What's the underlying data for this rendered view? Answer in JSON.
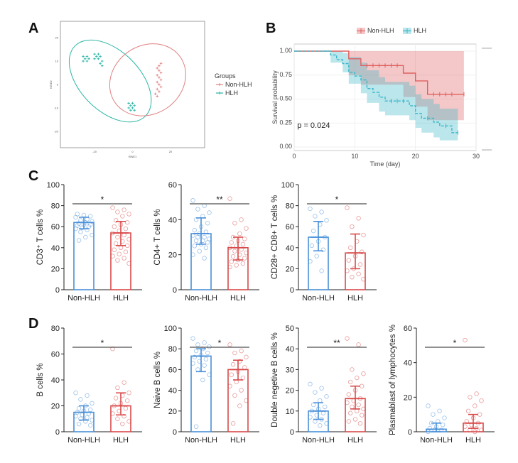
{
  "panels": [
    {
      "id": "A",
      "letter": "A"
    },
    {
      "id": "B",
      "letter": "B"
    },
    {
      "id": "C",
      "letter": "C"
    },
    {
      "id": "D",
      "letter": "D"
    }
  ],
  "colors": {
    "nonhlh": "#4a90d9",
    "hlh": "#d94a4a",
    "km_non": "#e06060",
    "km_hlh": "#3bb8c8",
    "tsne_non": "#e08080",
    "tsne_hlh": "#2bb5a5"
  },
  "chart_data": [
    {
      "panel": "A",
      "type": "scatter",
      "xlabel": "tSNE1",
      "ylabel": "tSNE2",
      "xticks": [
        "-20",
        "0",
        "20"
      ],
      "yticks": [
        "20",
        "10",
        "0",
        "-10",
        "-20"
      ],
      "legend": {
        "title": "Groups",
        "entries": [
          "Non-HLH",
          "HLH"
        ],
        "placement": "right"
      },
      "series": [
        {
          "name": "Non-HLH",
          "points": [
            [
              14,
              8
            ],
            [
              15,
              9
            ],
            [
              13,
              7
            ],
            [
              14,
              6
            ],
            [
              15,
              5
            ],
            [
              13,
              4
            ],
            [
              14,
              3
            ],
            [
              15,
              2
            ],
            [
              13,
              1
            ],
            [
              14,
              0
            ],
            [
              15,
              -1
            ],
            [
              13,
              -2
            ],
            [
              14,
              -3
            ],
            [
              12,
              -4
            ],
            [
              13,
              -5
            ]
          ]
        },
        {
          "name": "HLH",
          "points": [
            [
              -26,
              12
            ],
            [
              -24,
              12
            ],
            [
              -25,
              11
            ],
            [
              -23,
              11
            ],
            [
              -26,
              10
            ],
            [
              -24,
              10
            ],
            [
              -20,
              13
            ],
            [
              -18,
              13
            ],
            [
              -19,
              12
            ],
            [
              -17,
              12
            ],
            [
              -20,
              11
            ],
            [
              -18,
              11
            ],
            [
              -16,
              10
            ],
            [
              -17,
              9
            ],
            [
              -16,
              8
            ],
            [
              -2,
              -8
            ],
            [
              0,
              -8
            ],
            [
              -1,
              -9
            ],
            [
              1,
              -9
            ],
            [
              -2,
              -10
            ],
            [
              0,
              -10
            ],
            [
              -1,
              -11
            ],
            [
              1,
              -11
            ]
          ]
        }
      ]
    },
    {
      "panel": "B",
      "type": "line",
      "xlabel": "Time (day)",
      "ylabel": "Survival probability",
      "xlim": [
        0,
        30
      ],
      "ylim": [
        0,
        1
      ],
      "xticks": [
        0,
        10,
        20,
        30
      ],
      "yticks": [
        "0.00",
        "0.25",
        "0.50",
        "0.75",
        "1.00"
      ],
      "legend": {
        "entries": [
          "Non-HLH",
          "HLH"
        ],
        "placement": "top"
      },
      "annotation": "p = 0.024",
      "series": [
        {
          "name": "Non-HLH",
          "steps": [
            [
              0,
              1
            ],
            [
              9,
              1
            ],
            [
              9,
              0.92
            ],
            [
              11,
              0.92
            ],
            [
              11,
              0.85
            ],
            [
              18,
              0.85
            ],
            [
              18,
              0.77
            ],
            [
              20,
              0.77
            ],
            [
              20,
              0.69
            ],
            [
              22,
              0.69
            ],
            [
              22,
              0.55
            ],
            [
              28,
              0.55
            ]
          ],
          "lower": [
            [
              0,
              1
            ],
            [
              9,
              1
            ],
            [
              9,
              0.75
            ],
            [
              11,
              0.75
            ],
            [
              11,
              0.65
            ],
            [
              18,
              0.65
            ],
            [
              18,
              0.52
            ],
            [
              20,
              0.52
            ],
            [
              20,
              0.42
            ],
            [
              22,
              0.42
            ],
            [
              22,
              0.28
            ],
            [
              28,
              0.28
            ]
          ],
          "upper": [
            [
              0,
              1
            ],
            [
              9,
              1
            ],
            [
              9,
              1
            ],
            [
              28,
              1
            ]
          ],
          "censor": [
            [
              12,
              0.85
            ],
            [
              13,
              0.85
            ],
            [
              14,
              0.85
            ],
            [
              15,
              0.85
            ],
            [
              16,
              0.85
            ],
            [
              17,
              0.85
            ],
            [
              23,
              0.55
            ],
            [
              24,
              0.55
            ],
            [
              25,
              0.55
            ],
            [
              26,
              0.55
            ],
            [
              28,
              0.55
            ]
          ]
        },
        {
          "name": "HLH",
          "steps": [
            [
              0,
              1
            ],
            [
              6,
              1
            ],
            [
              6,
              0.96
            ],
            [
              7,
              0.96
            ],
            [
              7,
              0.91
            ],
            [
              8,
              0.91
            ],
            [
              8,
              0.87
            ],
            [
              9,
              0.87
            ],
            [
              9,
              0.78
            ],
            [
              10,
              0.78
            ],
            [
              10,
              0.74
            ],
            [
              11,
              0.74
            ],
            [
              11,
              0.7
            ],
            [
              12,
              0.7
            ],
            [
              12,
              0.61
            ],
            [
              13,
              0.61
            ],
            [
              13,
              0.57
            ],
            [
              14,
              0.57
            ],
            [
              14,
              0.52
            ],
            [
              15,
              0.52
            ],
            [
              15,
              0.48
            ],
            [
              19,
              0.48
            ],
            [
              19,
              0.43
            ],
            [
              20,
              0.43
            ],
            [
              20,
              0.35
            ],
            [
              21,
              0.35
            ],
            [
              21,
              0.3
            ],
            [
              23,
              0.3
            ],
            [
              23,
              0.26
            ],
            [
              24,
              0.26
            ],
            [
              24,
              0.22
            ],
            [
              26,
              0.22
            ],
            [
              26,
              0.15
            ],
            [
              27,
              0.15
            ]
          ],
          "lower": [
            [
              0,
              1
            ],
            [
              6,
              1
            ],
            [
              6,
              0.88
            ],
            [
              8,
              0.78
            ],
            [
              9,
              0.66
            ],
            [
              11,
              0.56
            ],
            [
              12,
              0.46
            ],
            [
              14,
              0.37
            ],
            [
              15,
              0.33
            ],
            [
              19,
              0.28
            ],
            [
              20,
              0.2
            ],
            [
              21,
              0.15
            ],
            [
              23,
              0.1
            ],
            [
              24,
              0.07
            ],
            [
              27,
              0.05
            ]
          ],
          "upper": [
            [
              0,
              1
            ],
            [
              6,
              1
            ],
            [
              8,
              0.98
            ],
            [
              9,
              0.94
            ],
            [
              11,
              0.88
            ],
            [
              12,
              0.8
            ],
            [
              14,
              0.73
            ],
            [
              15,
              0.68
            ],
            [
              19,
              0.64
            ],
            [
              20,
              0.55
            ],
            [
              21,
              0.5
            ],
            [
              23,
              0.45
            ],
            [
              24,
              0.4
            ],
            [
              27,
              0.34
            ]
          ],
          "censor": [
            [
              16,
              0.48
            ],
            [
              17,
              0.48
            ],
            [
              18,
              0.48
            ],
            [
              22,
              0.3
            ],
            [
              25,
              0.22
            ],
            [
              27,
              0.15
            ]
          ]
        }
      ]
    },
    {
      "panel": "C1",
      "type": "bar",
      "ylabel": "CD3⁺ T cells %",
      "ylim": [
        0,
        100
      ],
      "yticks": [
        0,
        20,
        40,
        60,
        80,
        100
      ],
      "categories": [
        "Non-HLH",
        "HLH"
      ],
      "values": [
        64,
        54
      ],
      "error": [
        [
          58,
          69
        ],
        [
          42,
          65
        ]
      ],
      "significance": "*",
      "points": [
        [
          69,
          67,
          66,
          65,
          64,
          63,
          62,
          62,
          61,
          60,
          59,
          58,
          57,
          55,
          52,
          50,
          47,
          70,
          71,
          72
        ],
        [
          78,
          76,
          74,
          72,
          70,
          66,
          64,
          62,
          60,
          58,
          56,
          54,
          52,
          50,
          48,
          46,
          44,
          42,
          40,
          38,
          36,
          34,
          32,
          30,
          28,
          25
        ]
      ]
    },
    {
      "panel": "C2",
      "type": "bar",
      "ylabel": "CD4+ T cells %",
      "ylim": [
        0,
        60
      ],
      "yticks": [
        0,
        20,
        40,
        60
      ],
      "categories": [
        "Non-HLH",
        "HLH"
      ],
      "values": [
        32,
        24
      ],
      "error": [
        [
          26,
          41
        ],
        [
          17,
          30
        ]
      ],
      "significance": "**",
      "points": [
        [
          51,
          48,
          46,
          44,
          42,
          40,
          38,
          36,
          34,
          33,
          32,
          31,
          30,
          30,
          29,
          28,
          28,
          27,
          26,
          25,
          24,
          22,
          20,
          18
        ],
        [
          52,
          40,
          38,
          35,
          32,
          30,
          29,
          28,
          27,
          26,
          25,
          24,
          23,
          22,
          21,
          20,
          19,
          18,
          17,
          16,
          15,
          14,
          13
        ]
      ]
    },
    {
      "panel": "C3",
      "type": "bar",
      "ylabel": "CD28+ CD8+ T cells %",
      "ylim": [
        0,
        100
      ],
      "yticks": [
        0,
        20,
        40,
        60,
        80,
        100
      ],
      "categories": [
        "Non-HLH",
        "HLH"
      ],
      "values": [
        50,
        35
      ],
      "error": [
        [
          37,
          65
        ],
        [
          20,
          53
        ]
      ],
      "significance": "*",
      "points": [
        [
          77,
          74,
          70,
          66,
          62,
          56,
          50,
          46,
          42,
          38,
          32,
          27,
          18
        ],
        [
          78,
          68,
          60,
          52,
          46,
          40,
          36,
          32,
          28,
          24,
          20,
          18,
          15,
          12,
          10
        ]
      ]
    },
    {
      "panel": "D1",
      "type": "bar",
      "ylabel": "B cells %",
      "ylim": [
        0,
        80
      ],
      "yticks": [
        0,
        20,
        40,
        60,
        80
      ],
      "categories": [
        "Non-HLH",
        "HLH"
      ],
      "values": [
        15,
        20
      ],
      "error": [
        [
          9,
          20
        ],
        [
          13,
          30
        ]
      ],
      "significance": "*",
      "points": [
        [
          30,
          28,
          25,
          22,
          20,
          18,
          17,
          16,
          15,
          14,
          13,
          12,
          11,
          10,
          9,
          8,
          6,
          5
        ],
        [
          64,
          38,
          34,
          30,
          28,
          26,
          24,
          22,
          20,
          18,
          16,
          14,
          12,
          10,
          8,
          6
        ]
      ]
    },
    {
      "panel": "D2",
      "type": "bar",
      "ylabel": "Naive B cells %",
      "ylim": [
        0,
        100
      ],
      "yticks": [
        0,
        20,
        40,
        60,
        80,
        100
      ],
      "categories": [
        "Non-HLH",
        "HLH"
      ],
      "values": [
        73,
        60
      ],
      "error": [
        [
          58,
          80
        ],
        [
          50,
          69
        ]
      ],
      "significance": "*",
      "points": [
        [
          90,
          86,
          84,
          82,
          80,
          78,
          76,
          74,
          72,
          70,
          68,
          66,
          64,
          60,
          55,
          50,
          5
        ],
        [
          84,
          78,
          76,
          72,
          68,
          65,
          62,
          58,
          55,
          52,
          48,
          44,
          40,
          35,
          30,
          25,
          8
        ]
      ]
    },
    {
      "panel": "D3",
      "type": "bar",
      "ylabel": "Double negetive B cells %",
      "ylim": [
        0,
        50
      ],
      "yticks": [
        0,
        10,
        20,
        30,
        40,
        50
      ],
      "categories": [
        "Non-HLH",
        "HLH"
      ],
      "values": [
        10,
        16
      ],
      "error": [
        [
          6,
          14
        ],
        [
          11,
          22
        ]
      ],
      "significance": "**",
      "points": [
        [
          23,
          21,
          19,
          17,
          15,
          13,
          12,
          11,
          10,
          9,
          8,
          7,
          6,
          5,
          4,
          3
        ],
        [
          45,
          42,
          30,
          28,
          26,
          24,
          22,
          20,
          18,
          16,
          15,
          14,
          13,
          12,
          11,
          10,
          9,
          8,
          6,
          5,
          4
        ]
      ]
    },
    {
      "panel": "D4",
      "type": "bar",
      "ylabel": "Plasmablast of lymphocytes %",
      "ylim": [
        0,
        60
      ],
      "yticks": [
        0,
        20,
        40,
        60
      ],
      "categories": [
        "Non-HLH",
        "HLH"
      ],
      "values": [
        1.5,
        5
      ],
      "error": [
        [
          0,
          5
        ],
        [
          2,
          10
        ]
      ],
      "significance": "*",
      "points": [
        [
          15,
          12,
          10,
          8,
          6,
          5,
          4,
          3,
          2,
          1,
          1,
          0
        ],
        [
          53,
          22,
          20,
          18,
          15,
          12,
          10,
          8,
          6,
          5,
          4,
          3,
          2,
          1,
          1,
          0
        ]
      ]
    }
  ]
}
